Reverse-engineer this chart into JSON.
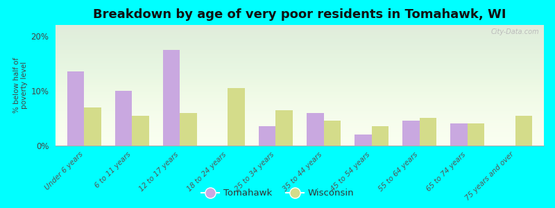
{
  "title": "Breakdown by age of very poor residents in Tomahawk, WI",
  "ylabel": "% below half of\npoverty level",
  "categories": [
    "Under 6 years",
    "6 to 11 years",
    "12 to 17 years",
    "18 to 24 years",
    "25 to 34 years",
    "35 to 44 years",
    "45 to 54 years",
    "55 to 64 years",
    "65 to 74 years",
    "75 years and over"
  ],
  "tomahawk_values": [
    13.5,
    10.0,
    17.5,
    0,
    3.5,
    6.0,
    2.0,
    4.5,
    4.0,
    0
  ],
  "wisconsin_values": [
    7.0,
    5.5,
    6.0,
    10.5,
    6.5,
    4.5,
    3.5,
    5.0,
    4.0,
    5.5
  ],
  "tomahawk_color": "#c9a8e0",
  "wisconsin_color": "#d4dc8a",
  "bg_color": "#00ffff",
  "ylim": [
    0,
    22
  ],
  "yticks": [
    0,
    10,
    20
  ],
  "ytick_labels": [
    "0%",
    "10%",
    "20%"
  ],
  "bar_width": 0.35,
  "title_fontsize": 13,
  "watermark": "City-Data.com",
  "legend_tomahawk": "Tomahawk",
  "legend_wisconsin": "Wisconsin"
}
